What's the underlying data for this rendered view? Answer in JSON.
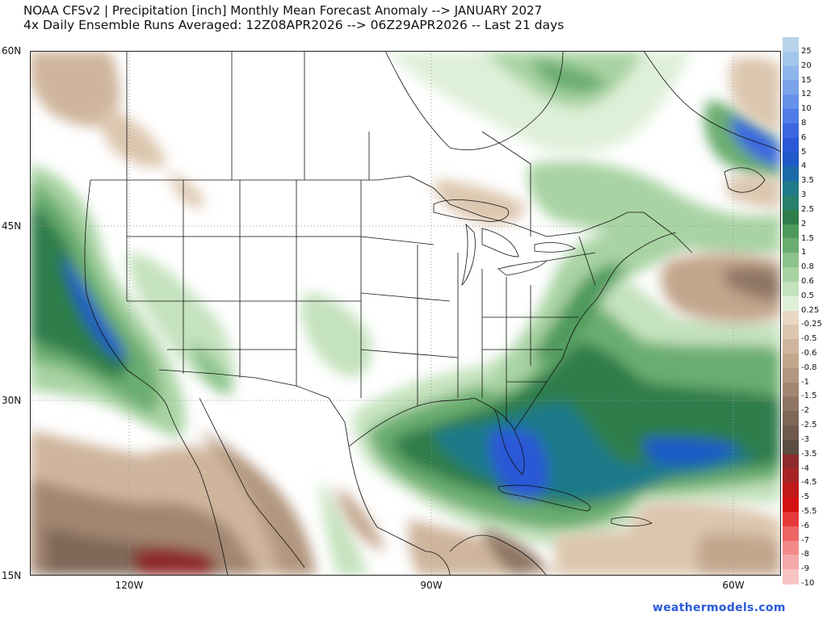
{
  "header": {
    "title_line1": "NOAA CFSv2 | Precipitation [inch] Monthly Mean Forecast Anomaly --> JANUARY 2027",
    "title_line2": "4x Daily Ensemble Runs Averaged: 12Z08APR2026 --> 06Z29APR2026 -- Last 21 days"
  },
  "axes": {
    "lat_labels": [
      "60N",
      "45N",
      "30N",
      "15N"
    ],
    "lon_labels": [
      "120W",
      "90W",
      "60W"
    ]
  },
  "colorbar": {
    "segments": [
      {
        "label": "25",
        "color": "#b9d4ea"
      },
      {
        "label": "20",
        "color": "#a3c6ea"
      },
      {
        "label": "15",
        "color": "#8fb6ea"
      },
      {
        "label": "12",
        "color": "#7aa3ea"
      },
      {
        "label": "10",
        "color": "#6692ea"
      },
      {
        "label": "8",
        "color": "#4f7ce6"
      },
      {
        "label": "6",
        "color": "#3b68e0"
      },
      {
        "label": "5",
        "color": "#2a58d6"
      },
      {
        "label": "4",
        "color": "#1f5ac8"
      },
      {
        "label": "3.5",
        "color": "#1c6aa8"
      },
      {
        "label": "3",
        "color": "#1f7a8a"
      },
      {
        "label": "2.5",
        "color": "#26806c"
      },
      {
        "label": "2",
        "color": "#2e7d4b"
      },
      {
        "label": "1.5",
        "color": "#4e9a5c"
      },
      {
        "label": "1",
        "color": "#6bad6f"
      },
      {
        "label": "0.8",
        "color": "#8cc38c"
      },
      {
        "label": "0.6",
        "color": "#a8d3a3"
      },
      {
        "label": "0.5",
        "color": "#c4e2bd"
      },
      {
        "label": "0.25",
        "color": "#dff0d9"
      },
      {
        "label": "-0.25",
        "color": "#e9d8c4"
      },
      {
        "label": "-0.5",
        "color": "#dcc6ae"
      },
      {
        "label": "-0.6",
        "color": "#cfb59c"
      },
      {
        "label": "-0.8",
        "color": "#c2a68c"
      },
      {
        "label": "-1",
        "color": "#b2967e"
      },
      {
        "label": "-1.5",
        "color": "#a28671"
      },
      {
        "label": "-2",
        "color": "#8f7664"
      },
      {
        "label": "-2.5",
        "color": "#7f6858"
      },
      {
        "label": "-3",
        "color": "#6e5a4c"
      },
      {
        "label": "-3.5",
        "color": "#5d4c40"
      },
      {
        "label": "-4",
        "color": "#8e2b2b"
      },
      {
        "label": "-4.5",
        "color": "#a82424"
      },
      {
        "label": "-5",
        "color": "#c01a1a"
      },
      {
        "label": "-5.5",
        "color": "#d40f0f"
      },
      {
        "label": "-6",
        "color": "#e63a3a"
      },
      {
        "label": "-7",
        "color": "#ee6464"
      },
      {
        "label": "-8",
        "color": "#f28a8a"
      },
      {
        "label": "-9",
        "color": "#f5a8a8"
      },
      {
        "label": "-10",
        "color": "#f8c4c4"
      }
    ]
  },
  "credit": "weathermodels.com"
}
